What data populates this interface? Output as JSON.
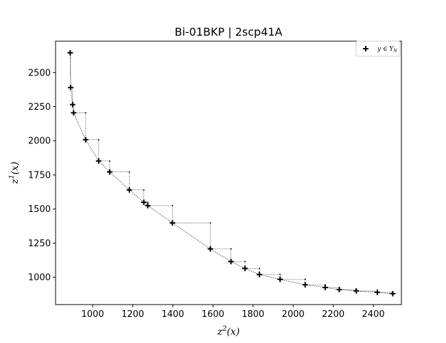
{
  "chart_data": {
    "type": "scatter",
    "title": "Bi-01BKP | 2scp41A",
    "xlabel_base": "z",
    "xlabel_sup": "2",
    "xlabel_tail": "(x)",
    "ylabel_base": "z",
    "ylabel_sup": "1",
    "ylabel_tail": "(x)",
    "xlim": [
      815,
      2540
    ],
    "ylim": [
      800,
      2730
    ],
    "xticks": [
      1000,
      1200,
      1400,
      1600,
      1800,
      2000,
      2200,
      2400
    ],
    "yticks": [
      1000,
      1250,
      1500,
      1750,
      2000,
      2250,
      2500
    ],
    "grid": false,
    "legend_position": "top-right",
    "legend_label": "y ∈ Y_N",
    "series": [
      {
        "name": "y ∈ Y_N",
        "marker": "plus",
        "color": "#000000",
        "x": [
          888,
          890,
          900,
          905,
          965,
          1030,
          1085,
          1183,
          1255,
          1275,
          1398,
          1587,
          1690,
          1760,
          1832,
          1935,
          2060,
          2160,
          2230,
          2315,
          2420,
          2497
        ],
        "y": [
          2645,
          2390,
          2265,
          2205,
          2008,
          1852,
          1772,
          1640,
          1550,
          1525,
          1398,
          1208,
          1115,
          1065,
          1020,
          985,
          945,
          925,
          910,
          900,
          890,
          880
        ]
      }
    ]
  }
}
